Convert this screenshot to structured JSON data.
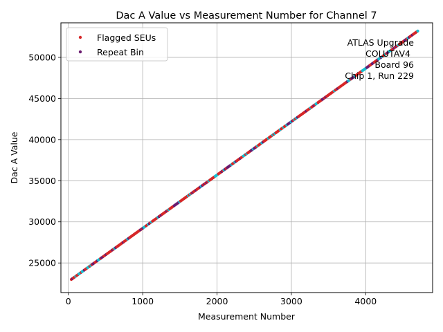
{
  "chart_data": {
    "type": "scatter",
    "title": "Dac A Value vs Measurement Number for Channel 7",
    "xlabel": "Measurement Number",
    "ylabel": "Dac A Value",
    "xlim": [
      -100,
      4900
    ],
    "ylim": [
      21400,
      54200
    ],
    "xticks": [
      0,
      1000,
      2000,
      3000,
      4000
    ],
    "yticks": [
      25000,
      30000,
      35000,
      40000,
      45000,
      50000
    ],
    "grid": true,
    "legend_position": "top-left",
    "line_start": {
      "x": 40,
      "y": 23000
    },
    "line_end": {
      "x": 4700,
      "y": 53200
    },
    "series": [
      {
        "name": "Flagged SEUs",
        "color": "#d62728",
        "marker": "circle"
      },
      {
        "name": "Repeat Bin",
        "color": "#6a1b6f",
        "marker": "circle"
      },
      {
        "name": "",
        "color": "#17becf",
        "marker": "circle"
      }
    ],
    "annotation": [
      "ATLAS Upgrade",
      "COLUTAV4",
      "Board 96",
      "Chip 1, Run 229"
    ]
  }
}
